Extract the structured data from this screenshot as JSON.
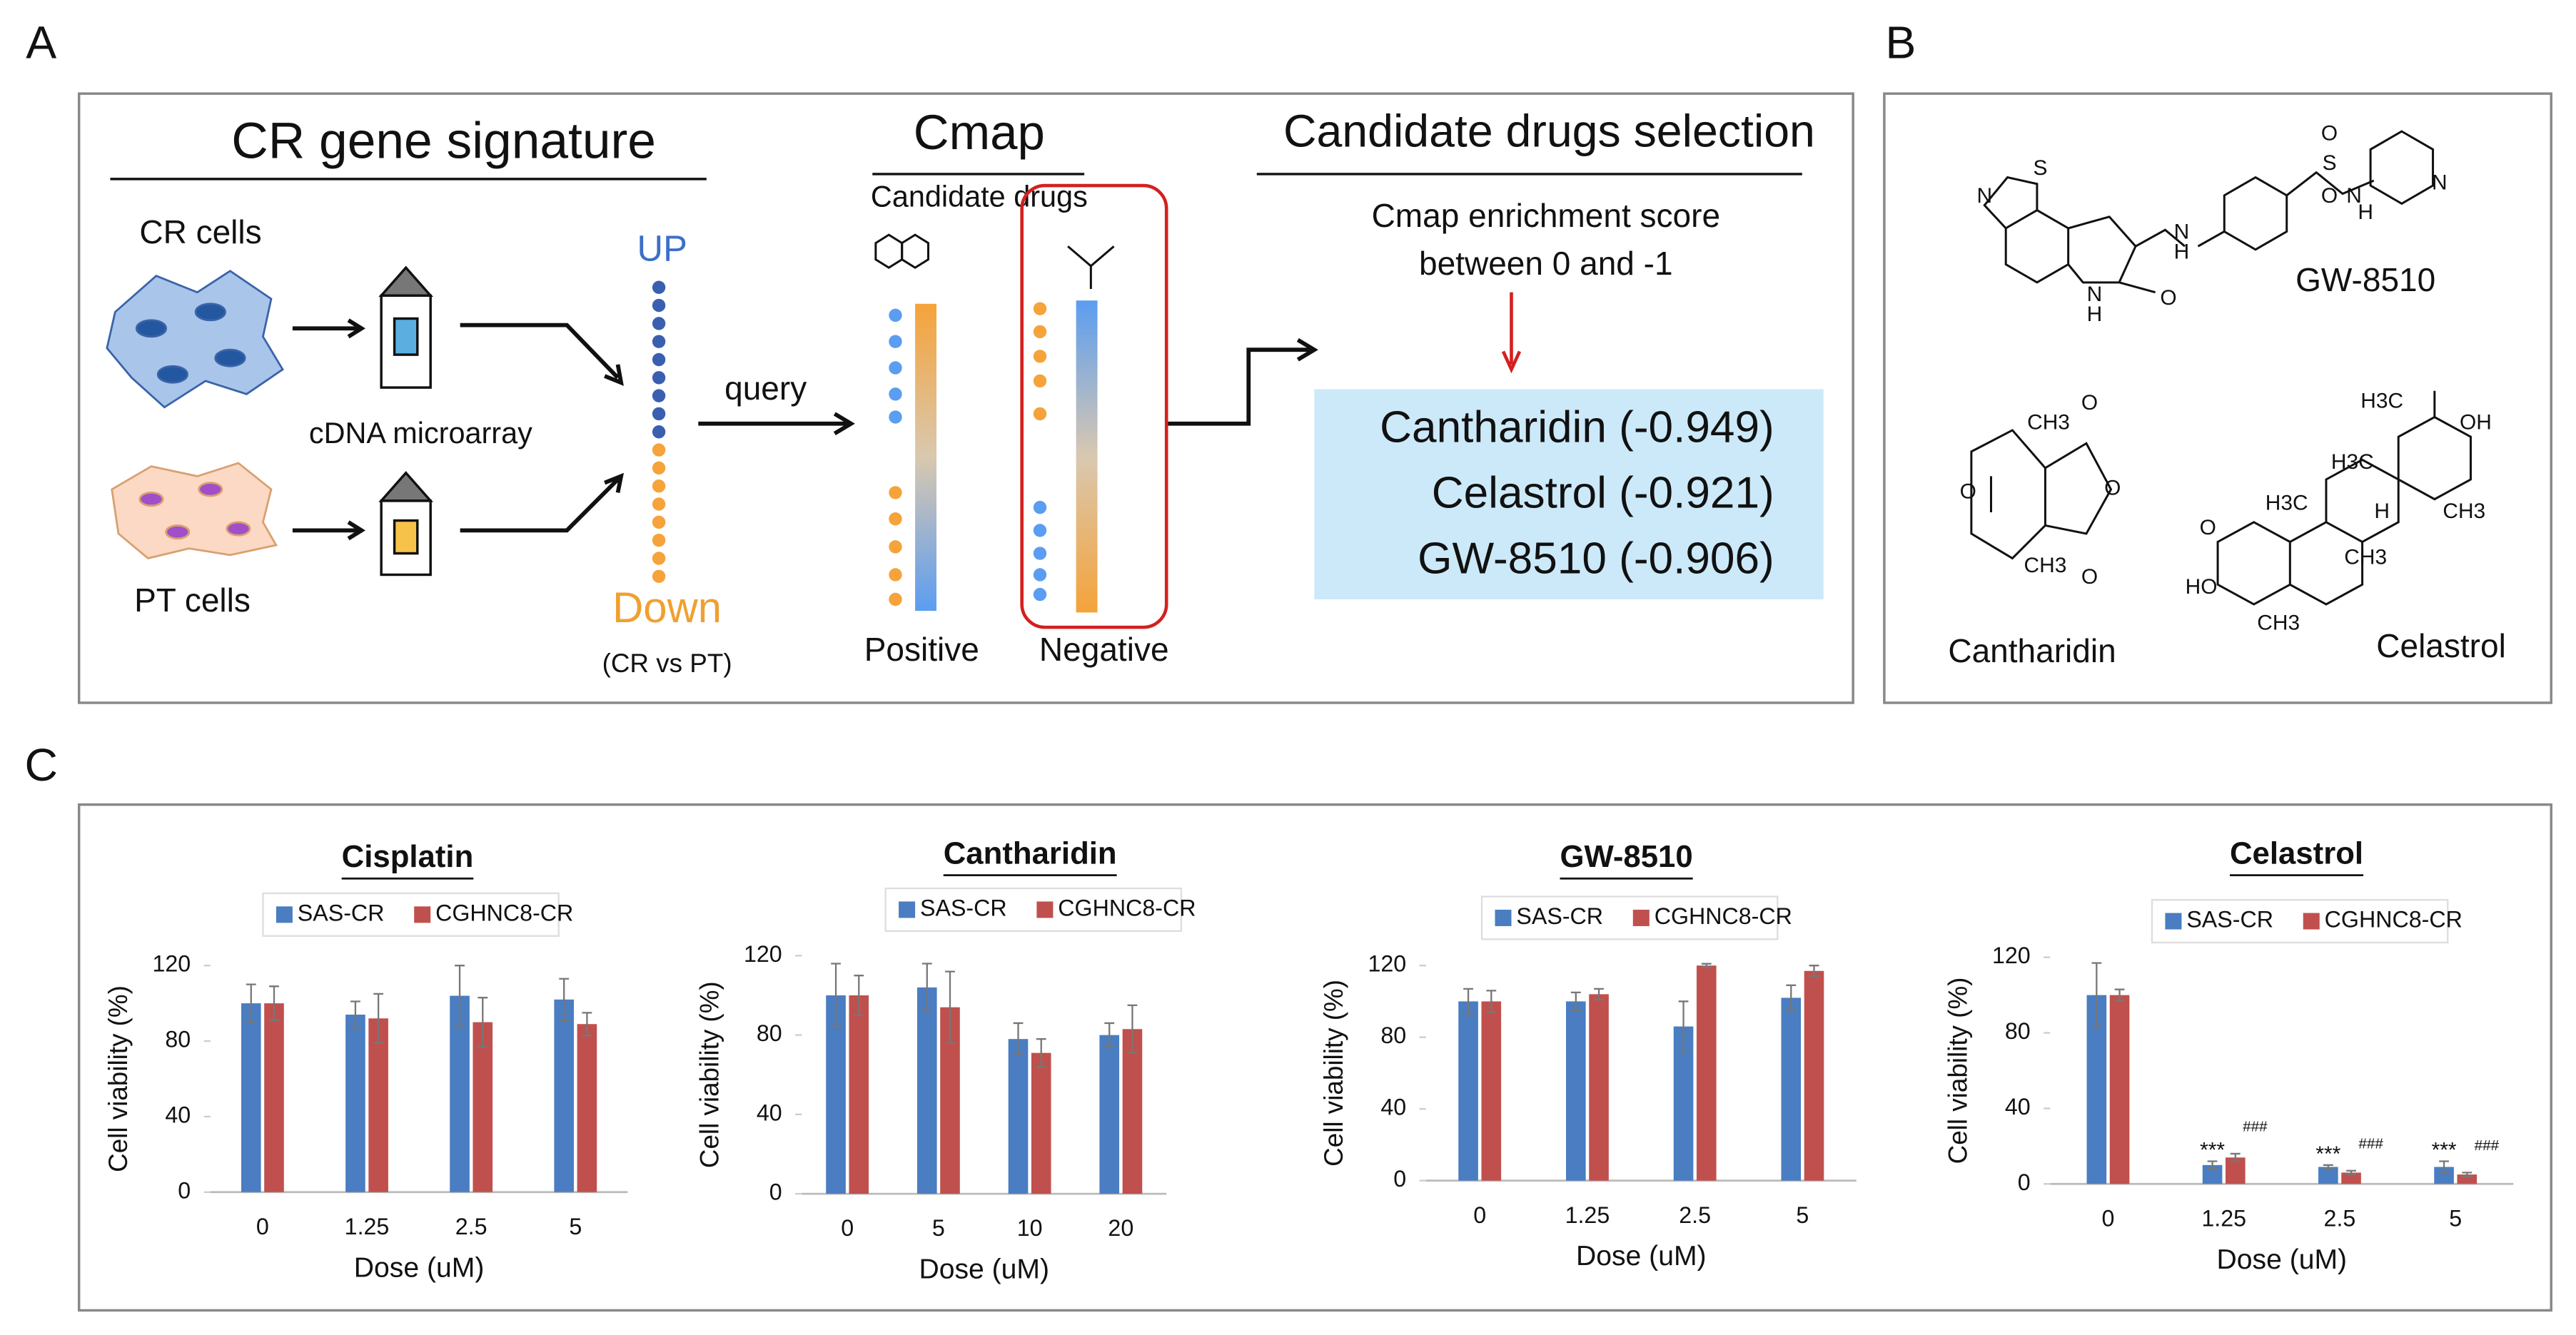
{
  "panel_a": {
    "label": "A",
    "signature_title": "CR gene signature",
    "cr_cells": "CR cells",
    "pt_cells": "PT cells",
    "microarray": "cDNA microarray",
    "up": "UP",
    "down": "Down",
    "comparison": "(CR vs PT)",
    "query": "query",
    "cmap_title": "Cmap",
    "cmap_subtitle": "Candidate drugs",
    "positive": "Positive",
    "negative": "Negative",
    "selection_title": "Candidate drugs selection",
    "criterion": [
      "Cmap enrichment score",
      "between 0 and -1"
    ],
    "candidates": [
      "Cantharidin (-0.949)",
      "Celastrol (-0.921)",
      "GW-8510 (-0.906)"
    ]
  },
  "panel_b": {
    "label": "B",
    "molecules": [
      {
        "name": "GW-8510",
        "atoms": [
          "N",
          "S",
          "H",
          "N",
          "O",
          "N",
          "H",
          "S",
          "O",
          "O",
          "N",
          "H",
          "N"
        ]
      },
      {
        "name": "Cantharidin",
        "atoms": [
          "CH3",
          "O",
          "O",
          "O",
          "CH3",
          "O"
        ]
      },
      {
        "name": "Celastrol",
        "atoms": [
          "H3C",
          "OH",
          "H3C",
          "H3C",
          "H",
          "CH3",
          "CH3",
          "O",
          "HO",
          "CH3"
        ]
      }
    ]
  },
  "panel_c_label": "C",
  "chart_data": [
    {
      "type": "bar",
      "title": "Cisplatin",
      "xlabel": "Dose (uM)",
      "ylabel": "Cell viability (%)",
      "categories": [
        "0",
        "1.25",
        "2.5",
        "5"
      ],
      "series": [
        {
          "name": "SAS-CR",
          "color": "#4a7dc1",
          "values": [
            100,
            94,
            104,
            102
          ],
          "errors": [
            10,
            7,
            16,
            11
          ]
        },
        {
          "name": "CGHNC8-CR",
          "color": "#c0504d",
          "values": [
            100,
            92,
            90,
            89
          ],
          "errors": [
            9,
            13,
            13,
            6
          ]
        }
      ],
      "ylim": [
        0,
        120
      ],
      "yticks": [
        0,
        40,
        80,
        120
      ],
      "legend": "top"
    },
    {
      "type": "bar",
      "title": "Cantharidin",
      "xlabel": "Dose (uM)",
      "ylabel": "Cell viability (%)",
      "categories": [
        "0",
        "5",
        "10",
        "20"
      ],
      "series": [
        {
          "name": "SAS-CR",
          "color": "#4a7dc1",
          "values": [
            100,
            104,
            78,
            80
          ],
          "errors": [
            16,
            12,
            8,
            6
          ]
        },
        {
          "name": "CGHNC8-CR",
          "color": "#c0504d",
          "values": [
            100,
            94,
            71,
            83
          ],
          "errors": [
            10,
            18,
            7,
            12
          ]
        }
      ],
      "ylim": [
        0,
        120
      ],
      "yticks": [
        0,
        40,
        80,
        120
      ],
      "legend": "top"
    },
    {
      "type": "bar",
      "title": "GW-8510",
      "xlabel": "Dose (uM)",
      "ylabel": "Cell viability (%)",
      "categories": [
        "0",
        "1.25",
        "2.5",
        "5"
      ],
      "series": [
        {
          "name": "SAS-CR",
          "color": "#4a7dc1",
          "values": [
            100,
            100,
            86,
            102
          ],
          "errors": [
            7,
            5,
            14,
            7
          ]
        },
        {
          "name": "CGHNC8-CR",
          "color": "#c0504d",
          "values": [
            100,
            104,
            120,
            117
          ],
          "errors": [
            6,
            3,
            1,
            3
          ]
        }
      ],
      "ylim": [
        0,
        120
      ],
      "yticks": [
        0,
        40,
        80,
        120
      ],
      "legend": "top"
    },
    {
      "type": "bar",
      "title": "Celastrol",
      "xlabel": "Dose (uM)",
      "ylabel": "Cell viability (%)",
      "categories": [
        "0",
        "1.25",
        "2.5",
        "5"
      ],
      "series": [
        {
          "name": "SAS-CR",
          "color": "#4a7dc1",
          "values": [
            100,
            10,
            9,
            9
          ],
          "errors": [
            17,
            2,
            1,
            3
          ],
          "annotations": [
            null,
            "***",
            "***",
            "***"
          ]
        },
        {
          "name": "CGHNC8-CR",
          "color": "#c0504d",
          "values": [
            100,
            14,
            6,
            5
          ],
          "errors": [
            3,
            2,
            1,
            1
          ],
          "annotations": [
            null,
            "###",
            "###",
            "###"
          ]
        }
      ],
      "ylim": [
        0,
        120
      ],
      "yticks": [
        0,
        40,
        80,
        120
      ],
      "legend": "top"
    }
  ]
}
